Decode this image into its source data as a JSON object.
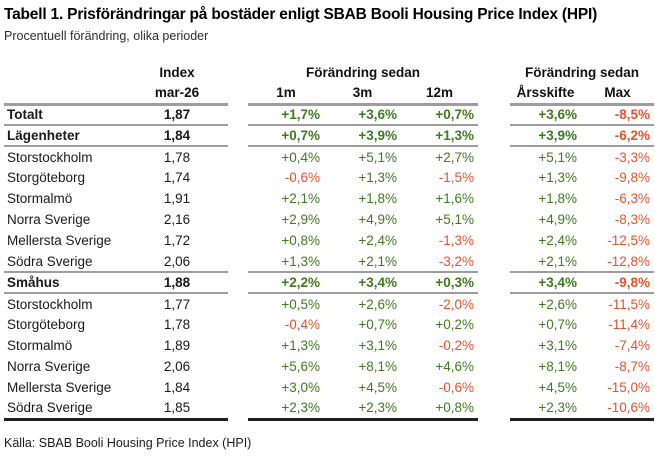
{
  "title": "Tabell 1. Prisförändringar på bostäder enligt SBAB Booli Housing Price Index (HPI)",
  "subtitle": "Procentuell förändring, olika perioder",
  "source": "Källa: SBAB Booli Housing Price Index (HPI)",
  "colors": {
    "positive": "#3e7b1f",
    "negative": "#e5522b",
    "rule_gray": "#9d9d9d",
    "rule_dark": "#1f1f1f"
  },
  "table": {
    "headers": {
      "index_label": "Index",
      "index_period": "mar-26",
      "change_since_1": "Förändring sedan",
      "change_since_2": "Förändring sedan",
      "periods": [
        "1m",
        "3m",
        "12m"
      ],
      "ytd": "Årsskifte",
      "max": "Max"
    },
    "rows": [
      {
        "label": "Totalt",
        "bold": true,
        "divider_below": true,
        "index": "1,87",
        "changes": [
          "+1,7%",
          "+3,6%",
          "+0,7%",
          "+3,6%",
          "-8,5%"
        ]
      },
      {
        "label": "Lägenheter",
        "bold": true,
        "divider_below": true,
        "index": "1,84",
        "changes": [
          "+0,7%",
          "+3,9%",
          "+1,3%",
          "+3,9%",
          "-6,2%"
        ]
      },
      {
        "label": "Storstockholm",
        "bold": false,
        "divider_below": false,
        "index": "1,78",
        "changes": [
          "+0,4%",
          "+5,1%",
          "+2,7%",
          "+5,1%",
          "-3,3%"
        ]
      },
      {
        "label": "Storgöteborg",
        "bold": false,
        "divider_below": false,
        "index": "1,74",
        "changes": [
          "-0,6%",
          "+1,3%",
          "-1,5%",
          "+1,3%",
          "-9,8%"
        ]
      },
      {
        "label": "Stormalmö",
        "bold": false,
        "divider_below": false,
        "index": "1,91",
        "changes": [
          "+2,1%",
          "+1,8%",
          "+1,6%",
          "+1,8%",
          "-6,3%"
        ]
      },
      {
        "label": "Norra Sverige",
        "bold": false,
        "divider_below": false,
        "index": "2,16",
        "changes": [
          "+2,9%",
          "+4,9%",
          "+5,1%",
          "+4,9%",
          "-8,3%"
        ]
      },
      {
        "label": "Mellersta Sverige",
        "bold": false,
        "divider_below": false,
        "index": "1,72",
        "changes": [
          "+0,8%",
          "+2,4%",
          "-1,3%",
          "+2,4%",
          "-12,5%"
        ]
      },
      {
        "label": "Södra Sverige",
        "bold": false,
        "divider_below": true,
        "index": "2,06",
        "changes": [
          "+1,3%",
          "+2,1%",
          "-3,2%",
          "+2,1%",
          "-12,8%"
        ]
      },
      {
        "label": "Småhus",
        "bold": true,
        "divider_below": true,
        "index": "1,88",
        "changes": [
          "+2,2%",
          "+3,4%",
          "+0,3%",
          "+3,4%",
          "-9,8%"
        ]
      },
      {
        "label": "Storstockholm",
        "bold": false,
        "divider_below": false,
        "index": "1,77",
        "changes": [
          "+0,5%",
          "+2,6%",
          "-2,0%",
          "+2,6%",
          "-11,5%"
        ]
      },
      {
        "label": "Storgöteborg",
        "bold": false,
        "divider_below": false,
        "index": "1,78",
        "changes": [
          "-0,4%",
          "+0,7%",
          "+0,2%",
          "+0,7%",
          "-11,4%"
        ]
      },
      {
        "label": "Stormalmö",
        "bold": false,
        "divider_below": false,
        "index": "1,89",
        "changes": [
          "+1,3%",
          "+3,1%",
          "-0,2%",
          "+3,1%",
          "-7,4%"
        ]
      },
      {
        "label": "Norra Sverige",
        "bold": false,
        "divider_below": false,
        "index": "2,06",
        "changes": [
          "+5,6%",
          "+8,1%",
          "+4,6%",
          "+8,1%",
          "-8,7%"
        ]
      },
      {
        "label": "Mellersta Sverige",
        "bold": false,
        "divider_below": false,
        "index": "1,84",
        "changes": [
          "+3,0%",
          "+4,5%",
          "-0,6%",
          "+4,5%",
          "-15,0%"
        ]
      },
      {
        "label": "Södra Sverige",
        "bold": false,
        "divider_below": false,
        "index": "1,85",
        "changes": [
          "+2,3%",
          "+2,3%",
          "+0,8%",
          "+2,3%",
          "-10,6%"
        ]
      }
    ]
  }
}
